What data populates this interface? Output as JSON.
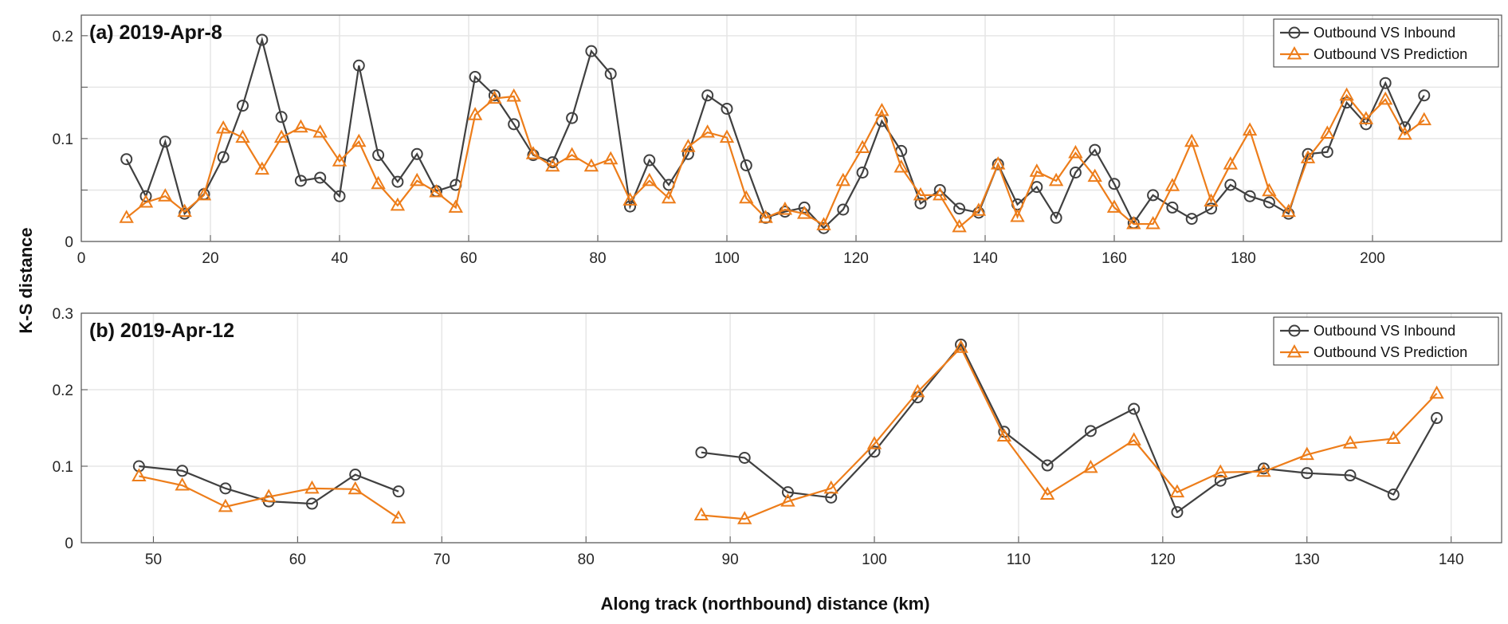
{
  "colors": {
    "inbound": "#404040",
    "prediction": "#ED7D1A",
    "grid": "#e6e6e6",
    "axis": "#555555"
  },
  "chart_data": [
    {
      "type": "line",
      "title": "(a) 2019-Apr-8",
      "xlabel": "Along track (northbound) distance (km)",
      "ylabel": "K-S distance",
      "xlim": [
        0,
        220
      ],
      "ylim": [
        0,
        0.22
      ],
      "xticks": [
        0,
        20,
        40,
        60,
        80,
        100,
        120,
        140,
        160,
        180,
        200
      ],
      "yticks": [
        0,
        0.05,
        0.1,
        0.15,
        0.2
      ],
      "yticklabels": [
        "0",
        "",
        "0.1",
        "",
        "0.2"
      ],
      "grid": true,
      "legend": "top-right",
      "series": [
        {
          "name": "Outbound VS Inbound",
          "marker": "circle",
          "x": [
            7,
            10,
            13,
            16,
            19,
            22,
            25,
            28,
            31,
            34,
            37,
            40,
            43,
            46,
            49,
            52,
            55,
            58,
            61,
            64,
            67,
            70,
            73,
            76,
            79,
            82,
            85,
            88,
            91,
            94,
            97,
            100,
            103,
            106,
            109,
            112,
            115,
            118,
            121,
            124,
            127,
            130,
            133,
            136,
            139,
            142,
            145,
            148,
            151,
            154,
            157,
            160,
            163,
            166,
            169,
            172,
            175,
            178,
            181,
            184,
            187,
            190,
            193,
            196,
            199,
            202,
            205,
            208
          ],
          "y": [
            0.08,
            0.044,
            0.097,
            0.027,
            0.046,
            0.082,
            0.132,
            0.196,
            0.121,
            0.059,
            0.062,
            0.044,
            0.171,
            0.084,
            0.058,
            0.085,
            0.049,
            0.055,
            0.16,
            0.142,
            0.114,
            0.084,
            0.077,
            0.12,
            0.185,
            0.163,
            0.034,
            0.079,
            0.055,
            0.085,
            0.142,
            0.129,
            0.074,
            0.023,
            0.029,
            0.033,
            0.013,
            0.031,
            0.067,
            0.117,
            0.088,
            0.037,
            0.05,
            0.032,
            0.028,
            0.075,
            0.036,
            0.053,
            0.023,
            0.067,
            0.089,
            0.056,
            0.018,
            0.045,
            0.033,
            0.022,
            0.032,
            0.055,
            0.044,
            0.038,
            0.027,
            0.085,
            0.087,
            0.135,
            0.114,
            0.154,
            0.111,
            0.142
          ]
        },
        {
          "name": "Outbound VS Prediction",
          "marker": "triangle",
          "x": [
            7,
            10,
            13,
            16,
            19,
            22,
            25,
            28,
            31,
            34,
            37,
            40,
            43,
            46,
            49,
            52,
            55,
            58,
            61,
            64,
            67,
            70,
            73,
            76,
            79,
            82,
            85,
            88,
            91,
            94,
            97,
            100,
            103,
            106,
            109,
            112,
            115,
            118,
            121,
            124,
            127,
            130,
            133,
            136,
            139,
            142,
            145,
            148,
            151,
            154,
            157,
            160,
            163,
            166,
            169,
            172,
            175,
            178,
            181,
            184,
            187,
            190,
            193,
            196,
            199,
            202,
            205,
            208
          ],
          "y": [
            0.023,
            0.038,
            0.044,
            0.029,
            0.045,
            0.11,
            0.101,
            0.07,
            0.101,
            0.111,
            0.106,
            0.078,
            0.097,
            0.056,
            0.035,
            0.059,
            0.048,
            0.033,
            0.123,
            0.139,
            0.141,
            0.085,
            0.073,
            0.084,
            0.073,
            0.08,
            0.04,
            0.059,
            0.042,
            0.092,
            0.106,
            0.101,
            0.042,
            0.023,
            0.031,
            0.027,
            0.016,
            0.059,
            0.091,
            0.127,
            0.072,
            0.045,
            0.045,
            0.014,
            0.03,
            0.075,
            0.024,
            0.068,
            0.059,
            0.086,
            0.063,
            0.033,
            0.017,
            0.017,
            0.054,
            0.097,
            0.039,
            0.075,
            0.108,
            0.049,
            0.029,
            0.081,
            0.105,
            0.142,
            0.119,
            0.138,
            0.104,
            0.118
          ]
        }
      ]
    },
    {
      "type": "line",
      "title": "(b) 2019-Apr-12",
      "xlim": [
        45,
        143.5
      ],
      "ylim": [
        0,
        0.3
      ],
      "xticks": [
        50,
        60,
        70,
        80,
        90,
        100,
        110,
        120,
        130,
        140
      ],
      "yticks": [
        0,
        0.1,
        0.2,
        0.3
      ],
      "yticklabels": [
        "0",
        "0.1",
        "0.2",
        "0.3"
      ],
      "grid": true,
      "legend": "top-right",
      "series": [
        {
          "name": "Outbound VS Inbound",
          "marker": "circle",
          "segments": [
            {
              "x": [
                49,
                52,
                55,
                58,
                61,
                64,
                67
              ],
              "y": [
                0.1,
                0.094,
                0.071,
                0.054,
                0.051,
                0.089,
                0.067
              ]
            },
            {
              "x": [
                88,
                91,
                94,
                97,
                100,
                103,
                106,
                109,
                112,
                115,
                118,
                121,
                124,
                127,
                130,
                133,
                136,
                139
              ],
              "y": [
                0.118,
                0.111,
                0.066,
                0.059,
                0.119,
                0.19,
                0.259,
                0.145,
                0.101,
                0.146,
                0.175,
                0.04,
                0.081,
                0.097,
                0.091,
                0.088,
                0.063,
                0.163
              ]
            }
          ]
        },
        {
          "name": "Outbound VS Prediction",
          "marker": "triangle",
          "segments": [
            {
              "x": [
                49,
                52,
                55,
                58,
                61,
                64,
                67
              ],
              "y": [
                0.087,
                0.075,
                0.047,
                0.06,
                0.071,
                0.07,
                0.032
              ]
            },
            {
              "x": [
                88,
                91,
                94,
                97,
                100,
                103,
                106,
                109,
                112,
                115,
                118,
                121,
                124,
                127,
                130,
                133,
                136,
                139
              ],
              "y": [
                0.036,
                0.031,
                0.054,
                0.071,
                0.129,
                0.197,
                0.255,
                0.139,
                0.063,
                0.098,
                0.134,
                0.066,
                0.092,
                0.093,
                0.115,
                0.13,
                0.136,
                0.195
              ]
            }
          ]
        }
      ]
    }
  ]
}
